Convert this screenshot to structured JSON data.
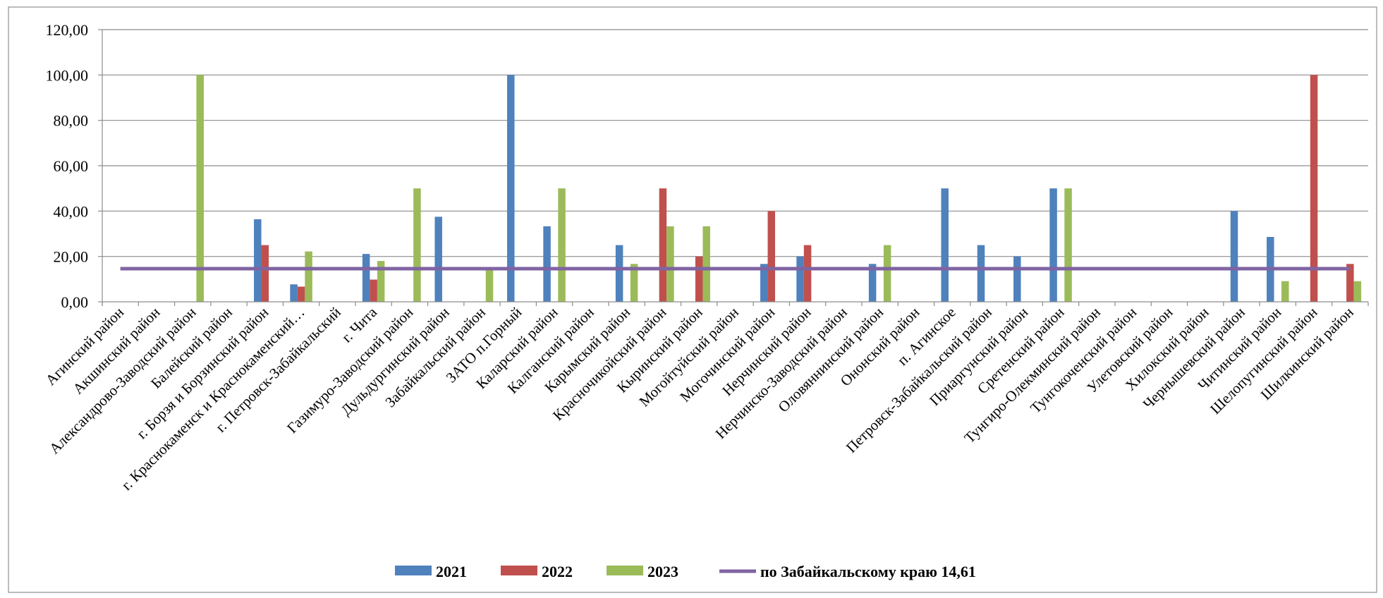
{
  "chart_data": {
    "type": "bar",
    "title": "",
    "xlabel": "",
    "ylabel": "",
    "ylim": [
      0,
      120
    ],
    "yticks": [
      "0,00",
      "20,00",
      "40,00",
      "60,00",
      "80,00",
      "100,00",
      "120,00"
    ],
    "grid": true,
    "legend_position": "bottom",
    "categories": [
      "Агинский район",
      "Акшинский район",
      "Александрово-Заводский район",
      "Балейский район",
      "г. Борзя и Борзинский район",
      "г. Краснокаменск и Краснокаменский…",
      "г. Петровск-Забайкальский",
      "г. Чита",
      "Газимуро-Заводский район",
      "Дульдургинский район",
      "Забайкальский район",
      "ЗАТО п.Горный",
      "Каларский район",
      "Калганский район",
      "Карымский район",
      "Красночикойский район",
      "Кыринский район",
      "Могойтуйский район",
      "Могочинский район",
      "Нерчинский район",
      "Нерчинско-Заводский район",
      "Оловяннинский район",
      "Ононский район",
      "п. Агинское",
      "Петровск-Забайкальский район",
      "Приаргунский район",
      "Сретенский район",
      "Тунгиро-Олекминский район",
      "Тунгокоченский район",
      "Улетовский район",
      "Хилокский район",
      "Чернышевский район",
      "Читинский район",
      "Шелопугинский район",
      "Шилкинский район"
    ],
    "series": [
      {
        "name": "2021",
        "color": "#4F81BD",
        "values": [
          0,
          0,
          0,
          0,
          36.4,
          7.7,
          0,
          21.1,
          0,
          37.5,
          0,
          100,
          33.3,
          0,
          25,
          0,
          0,
          0,
          16.7,
          20,
          0,
          16.7,
          0,
          50,
          25,
          20,
          50,
          0,
          0,
          0,
          0,
          40,
          28.6,
          0,
          0
        ]
      },
      {
        "name": "2022",
        "color": "#C0504D",
        "values": [
          0,
          0,
          0,
          0,
          25,
          6.7,
          0,
          9.8,
          0,
          0,
          0,
          0,
          0,
          0,
          0,
          50,
          20,
          0,
          40,
          25,
          0,
          0,
          0,
          0,
          0,
          0,
          0,
          0,
          0,
          0,
          0,
          0,
          0,
          100,
          16.7
        ]
      },
      {
        "name": "2023",
        "color": "#9BBB59",
        "values": [
          0,
          0,
          100,
          0,
          0,
          22.2,
          0,
          18,
          50,
          0,
          14.3,
          0,
          50,
          0,
          16.7,
          33.3,
          33.3,
          0,
          0,
          0,
          0,
          25,
          0,
          0,
          0,
          0,
          50,
          0,
          0,
          0,
          0,
          0,
          9.1,
          0,
          9.1
        ]
      }
    ],
    "reference_line": {
      "name": "по Забайкальскому краю 14,61",
      "value": 14.61,
      "color": "#8064A2"
    }
  }
}
